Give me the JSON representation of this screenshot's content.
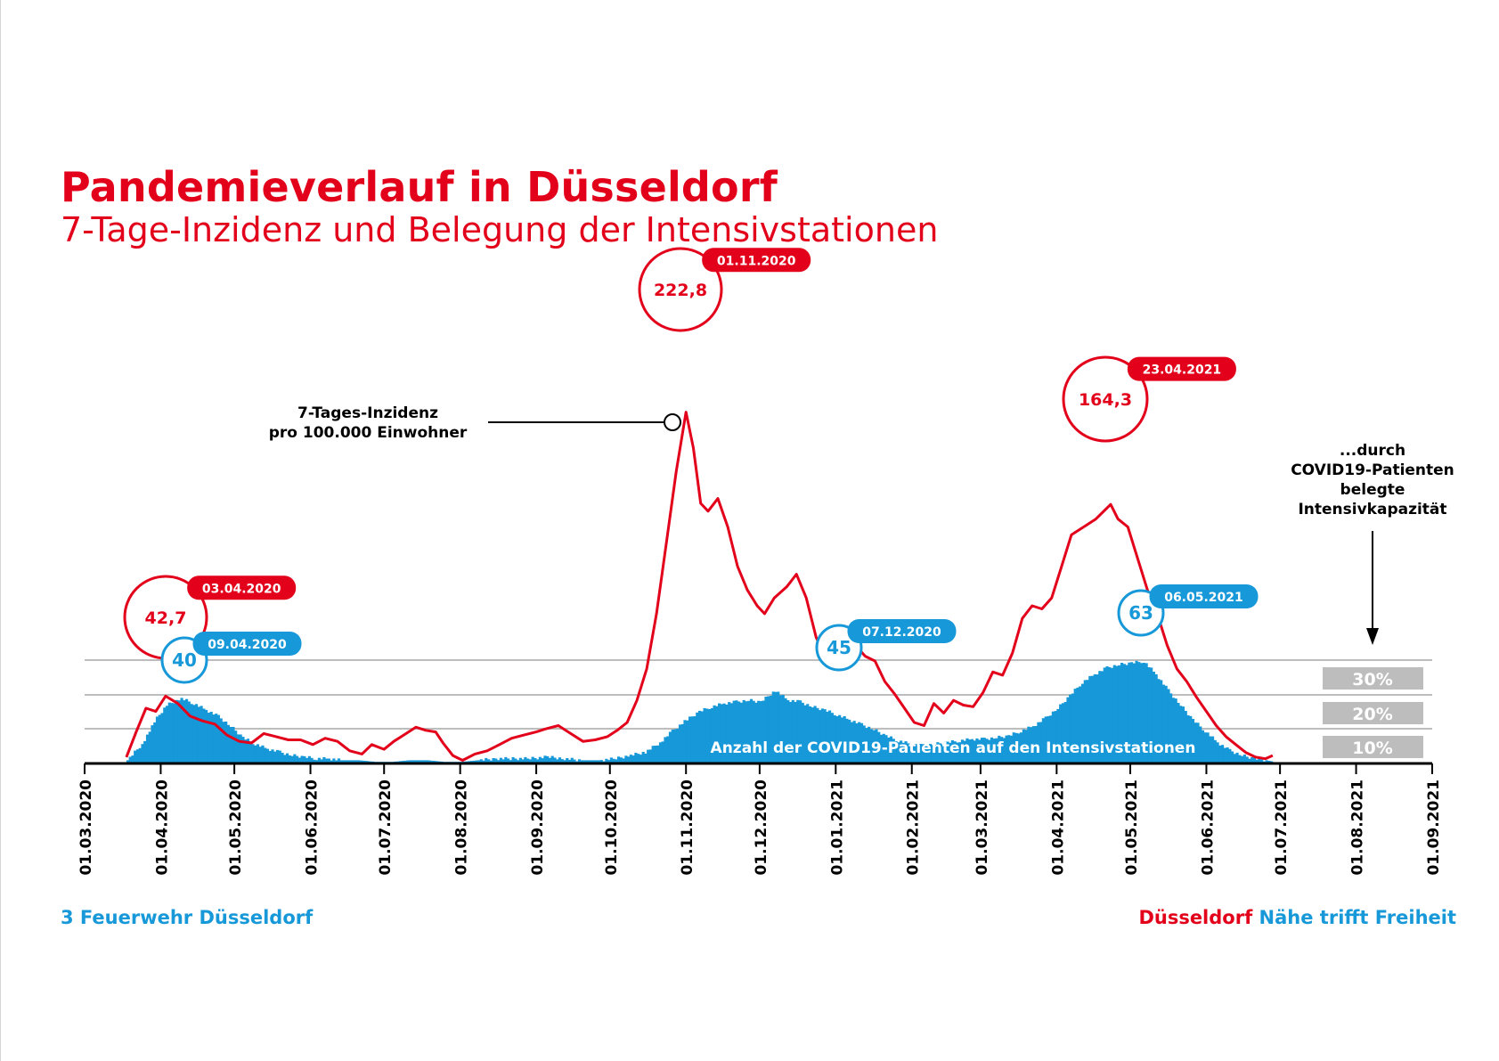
{
  "header": {
    "title": "Pandemieverlauf in Düsseldorf",
    "subtitle": "7-Tage-Inzidenz und Belegung der Intensivstationen"
  },
  "footer": {
    "credit": "3 Feuerwehr Düsseldorf",
    "brand_word1": "Düsseldorf",
    "brand_word2": "Nähe",
    "brand_word3": "trifft",
    "brand_word4": "Freiheit"
  },
  "chart_data": {
    "type": "line",
    "x_tick_labels": [
      "01.03.2020",
      "01.04.2020",
      "01.05.2020",
      "01.06.2020",
      "01.07.2020",
      "01.08.2020",
      "01.09.2020",
      "01.10.2020",
      "01.11.2020",
      "01.12.2020",
      "01.01.2021",
      "01.02.2021",
      "01.03.2021",
      "01.04.2021",
      "01.05.2021",
      "01.06.2021",
      "01.07.2021",
      "01.08.2021",
      "01.09.2021"
    ],
    "x_range": [
      "2020-03-01",
      "2021-09-01"
    ],
    "colors": {
      "incidence": "#e2001a",
      "icu": "#1798d8",
      "gridline": "#bdbdbd",
      "percent_box": "#bdbdbd"
    },
    "series": [
      {
        "name": "7-Tages-Inzidenz pro 100.000 Einwohner",
        "type": "line",
        "points": [
          [
            "2020-03-18",
            4
          ],
          [
            "2020-03-22",
            20
          ],
          [
            "2020-03-26",
            35
          ],
          [
            "2020-03-30",
            33
          ],
          [
            "2020-04-03",
            42.7
          ],
          [
            "2020-04-08",
            38
          ],
          [
            "2020-04-13",
            30
          ],
          [
            "2020-04-18",
            27
          ],
          [
            "2020-04-23",
            25
          ],
          [
            "2020-04-28",
            18
          ],
          [
            "2020-05-03",
            14
          ],
          [
            "2020-05-08",
            13
          ],
          [
            "2020-05-13",
            19
          ],
          [
            "2020-05-18",
            17
          ],
          [
            "2020-05-23",
            15
          ],
          [
            "2020-05-28",
            15
          ],
          [
            "2020-06-02",
            12
          ],
          [
            "2020-06-07",
            16
          ],
          [
            "2020-06-12",
            14
          ],
          [
            "2020-06-17",
            8
          ],
          [
            "2020-06-22",
            6
          ],
          [
            "2020-06-26",
            12
          ],
          [
            "2020-07-01",
            9
          ],
          [
            "2020-07-05",
            14
          ],
          [
            "2020-07-09",
            18
          ],
          [
            "2020-07-14",
            23
          ],
          [
            "2020-07-18",
            21
          ],
          [
            "2020-07-22",
            20
          ],
          [
            "2020-07-25",
            13
          ],
          [
            "2020-07-29",
            5
          ],
          [
            "2020-08-02",
            2
          ],
          [
            "2020-08-07",
            6
          ],
          [
            "2020-08-12",
            8
          ],
          [
            "2020-08-17",
            12
          ],
          [
            "2020-08-22",
            16
          ],
          [
            "2020-08-27",
            18
          ],
          [
            "2020-09-01",
            20
          ],
          [
            "2020-09-05",
            22
          ],
          [
            "2020-09-10",
            24
          ],
          [
            "2020-09-15",
            19
          ],
          [
            "2020-09-20",
            14
          ],
          [
            "2020-09-25",
            15
          ],
          [
            "2020-09-30",
            17
          ],
          [
            "2020-10-04",
            21
          ],
          [
            "2020-10-08",
            26
          ],
          [
            "2020-10-12",
            40
          ],
          [
            "2020-10-16",
            60
          ],
          [
            "2020-10-20",
            95
          ],
          [
            "2020-10-24",
            140
          ],
          [
            "2020-10-28",
            185
          ],
          [
            "2020-11-01",
            222.8
          ],
          [
            "2020-11-04",
            200
          ],
          [
            "2020-11-07",
            165
          ],
          [
            "2020-11-10",
            160
          ],
          [
            "2020-11-14",
            168
          ],
          [
            "2020-11-18",
            150
          ],
          [
            "2020-11-22",
            125
          ],
          [
            "2020-11-26",
            110
          ],
          [
            "2020-11-30",
            100
          ],
          [
            "2020-12-03",
            95
          ],
          [
            "2020-12-07",
            105
          ],
          [
            "2020-12-12",
            112
          ],
          [
            "2020-12-16",
            120
          ],
          [
            "2020-12-20",
            105
          ],
          [
            "2020-12-24",
            80
          ],
          [
            "2020-12-27",
            70
          ],
          [
            "2020-12-31",
            73
          ],
          [
            "2021-01-03",
            85
          ],
          [
            "2021-01-06",
            82
          ],
          [
            "2021-01-09",
            75
          ],
          [
            "2021-01-13",
            68
          ],
          [
            "2021-01-17",
            65
          ],
          [
            "2021-01-21",
            52
          ],
          [
            "2021-01-25",
            44
          ],
          [
            "2021-01-29",
            35
          ],
          [
            "2021-02-02",
            26
          ],
          [
            "2021-02-06",
            24
          ],
          [
            "2021-02-10",
            38
          ],
          [
            "2021-02-14",
            32
          ],
          [
            "2021-02-18",
            40
          ],
          [
            "2021-02-22",
            37
          ],
          [
            "2021-02-26",
            36
          ],
          [
            "2021-03-02",
            45
          ],
          [
            "2021-03-06",
            58
          ],
          [
            "2021-03-10",
            56
          ],
          [
            "2021-03-14",
            70
          ],
          [
            "2021-03-18",
            92
          ],
          [
            "2021-03-22",
            100
          ],
          [
            "2021-03-26",
            98
          ],
          [
            "2021-03-30",
            105
          ],
          [
            "2021-04-03",
            125
          ],
          [
            "2021-04-07",
            145
          ],
          [
            "2021-04-12",
            150
          ],
          [
            "2021-04-17",
            155
          ],
          [
            "2021-04-23",
            164.3
          ],
          [
            "2021-04-26",
            155
          ],
          [
            "2021-04-30",
            150
          ],
          [
            "2021-05-04",
            130
          ],
          [
            "2021-05-08",
            110
          ],
          [
            "2021-05-12",
            95
          ],
          [
            "2021-05-16",
            75
          ],
          [
            "2021-05-20",
            60
          ],
          [
            "2021-05-24",
            52
          ],
          [
            "2021-05-28",
            42
          ],
          [
            "2021-06-01",
            33
          ],
          [
            "2021-06-05",
            24
          ],
          [
            "2021-06-09",
            17
          ],
          [
            "2021-06-13",
            12
          ],
          [
            "2021-06-17",
            7
          ],
          [
            "2021-06-21",
            4
          ],
          [
            "2021-06-25",
            3
          ],
          [
            "2021-06-28",
            5
          ]
        ]
      },
      {
        "name": "Anzahl der COVID19-Patienten auf den Intensivstationen",
        "type": "bar",
        "points": [
          [
            "2020-03-18",
            2
          ],
          [
            "2020-03-24",
            12
          ],
          [
            "2020-03-30",
            28
          ],
          [
            "2020-04-03",
            36
          ],
          [
            "2020-04-09",
            40
          ],
          [
            "2020-04-14",
            37
          ],
          [
            "2020-04-19",
            33
          ],
          [
            "2020-04-24",
            29
          ],
          [
            "2020-04-29",
            23
          ],
          [
            "2020-05-04",
            16
          ],
          [
            "2020-05-09",
            12
          ],
          [
            "2020-05-14",
            9
          ],
          [
            "2020-05-19",
            7
          ],
          [
            "2020-05-24",
            5
          ],
          [
            "2020-05-29",
            4
          ],
          [
            "2020-06-03",
            3
          ],
          [
            "2020-06-08",
            3
          ],
          [
            "2020-06-13",
            2
          ],
          [
            "2020-06-20",
            2
          ],
          [
            "2020-06-27",
            1
          ],
          [
            "2020-07-04",
            1
          ],
          [
            "2020-07-11",
            2
          ],
          [
            "2020-07-18",
            2
          ],
          [
            "2020-07-25",
            1
          ],
          [
            "2020-08-01",
            1
          ],
          [
            "2020-08-08",
            2
          ],
          [
            "2020-08-15",
            3
          ],
          [
            "2020-08-22",
            3
          ],
          [
            "2020-08-29",
            3
          ],
          [
            "2020-09-05",
            4
          ],
          [
            "2020-09-12",
            3
          ],
          [
            "2020-09-19",
            2
          ],
          [
            "2020-09-26",
            2
          ],
          [
            "2020-10-03",
            3
          ],
          [
            "2020-10-09",
            5
          ],
          [
            "2020-10-15",
            7
          ],
          [
            "2020-10-21",
            13
          ],
          [
            "2020-10-26",
            20
          ],
          [
            "2020-11-01",
            27
          ],
          [
            "2020-11-06",
            32
          ],
          [
            "2020-11-11",
            35
          ],
          [
            "2020-11-16",
            37
          ],
          [
            "2020-11-21",
            38
          ],
          [
            "2020-11-26",
            39
          ],
          [
            "2020-12-01",
            38
          ],
          [
            "2020-12-07",
            45
          ],
          [
            "2020-12-12",
            39
          ],
          [
            "2020-12-17",
            38
          ],
          [
            "2020-12-22",
            35
          ],
          [
            "2020-12-27",
            33
          ],
          [
            "2021-01-01",
            30
          ],
          [
            "2021-01-06",
            27
          ],
          [
            "2021-01-11",
            24
          ],
          [
            "2021-01-16",
            21
          ],
          [
            "2021-01-21",
            17
          ],
          [
            "2021-01-26",
            14
          ],
          [
            "2021-01-31",
            12
          ],
          [
            "2021-02-05",
            11
          ],
          [
            "2021-02-10",
            12
          ],
          [
            "2021-02-15",
            13
          ],
          [
            "2021-02-20",
            14
          ],
          [
            "2021-02-25",
            15
          ],
          [
            "2021-03-02",
            15
          ],
          [
            "2021-03-07",
            16
          ],
          [
            "2021-03-12",
            17
          ],
          [
            "2021-03-17",
            20
          ],
          [
            "2021-03-22",
            23
          ],
          [
            "2021-03-27",
            28
          ],
          [
            "2021-04-01",
            34
          ],
          [
            "2021-04-06",
            42
          ],
          [
            "2021-04-11",
            50
          ],
          [
            "2021-04-16",
            55
          ],
          [
            "2021-04-21",
            59
          ],
          [
            "2021-04-26",
            61
          ],
          [
            "2021-05-01",
            62
          ],
          [
            "2021-05-06",
            63
          ],
          [
            "2021-05-11",
            55
          ],
          [
            "2021-05-16",
            45
          ],
          [
            "2021-05-21",
            36
          ],
          [
            "2021-05-26",
            27
          ],
          [
            "2021-05-31",
            20
          ],
          [
            "2021-06-05",
            13
          ],
          [
            "2021-06-10",
            8
          ],
          [
            "2021-06-15",
            5
          ],
          [
            "2021-06-20",
            3
          ],
          [
            "2021-06-25",
            2
          ],
          [
            "2021-06-28",
            1
          ]
        ]
      }
    ],
    "annotations": [
      {
        "series": "7-Tages-Inzidenz pro 100.000 Einwohner",
        "date": "01.11.2020",
        "value": "222,8"
      },
      {
        "series": "7-Tages-Inzidenz pro 100.000 Einwohner",
        "date": "23.04.2021",
        "value": "164,3"
      },
      {
        "series": "7-Tages-Inzidenz pro 100.000 Einwohner",
        "date": "03.04.2020",
        "value": "42,7"
      },
      {
        "series": "Anzahl der COVID19-Patienten auf den Intensivstationen",
        "date": "09.04.2020",
        "value": "40"
      },
      {
        "series": "Anzahl der COVID19-Patienten auf den Intensivstationen",
        "date": "07.12.2020",
        "value": "45"
      },
      {
        "series": "Anzahl der COVID19-Patienten auf den Intensivstationen",
        "date": "06.05.2021",
        "value": "63"
      }
    ],
    "incidence_label_line1": "7-Tages-Inzidenz",
    "incidence_label_line2": "pro 100.000 Einwohner",
    "icu_label": "Anzahl der COVID19-Patienten auf den Intensivstationen",
    "capacity_label_lines": [
      "...durch",
      "COVID19-Patienten",
      "belegte",
      "Intensivkapazität"
    ],
    "capacity_levels": [
      "30%",
      "20%",
      "10%"
    ]
  }
}
